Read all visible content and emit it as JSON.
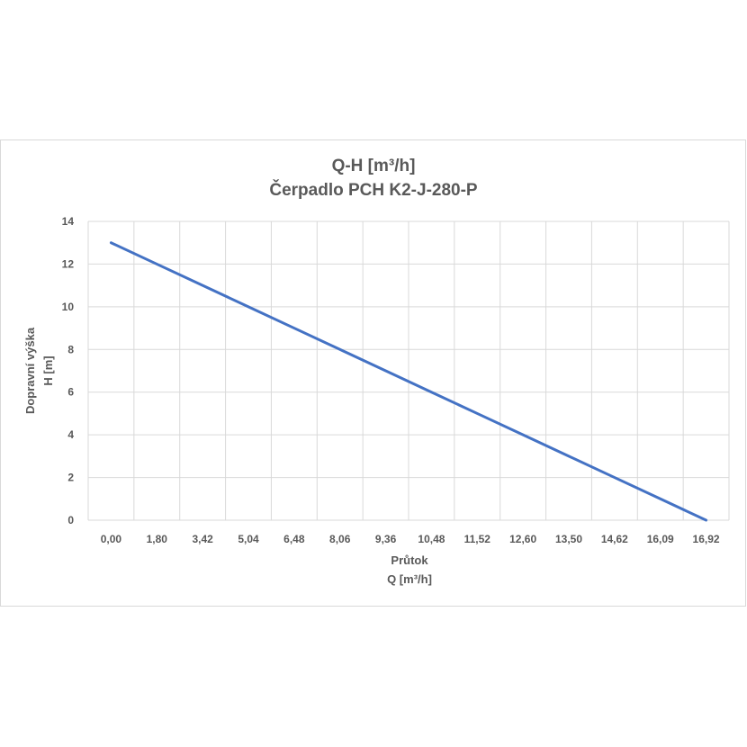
{
  "chart_data": {
    "type": "line",
    "title_line1": "Q-H  [m³/h]",
    "title_line2": "Čerpadlo PCH K2-J-280-P",
    "xlabel_line1": "Průtok",
    "xlabel_line2": "Q [m³/h]",
    "ylabel_line1": "Dopravní výška",
    "ylabel_line2": "H [m]",
    "categories": [
      "0,00",
      "1,80",
      "3,42",
      "5,04",
      "6,48",
      "8,06",
      "9,36",
      "10,48",
      "11,52",
      "12,60",
      "13,50",
      "14,62",
      "16,09",
      "16,92"
    ],
    "yticks": [
      "0",
      "2",
      "4",
      "6",
      "8",
      "10",
      "12",
      "14"
    ],
    "ylim": [
      0,
      14
    ],
    "series": [
      {
        "values": [
          13,
          12,
          11,
          10,
          9,
          8,
          7,
          6,
          5,
          4,
          3,
          2,
          1,
          0
        ]
      }
    ],
    "grid": true,
    "legend": "none",
    "line_color": "#4472c4",
    "grid_color": "#d9d9d9"
  }
}
